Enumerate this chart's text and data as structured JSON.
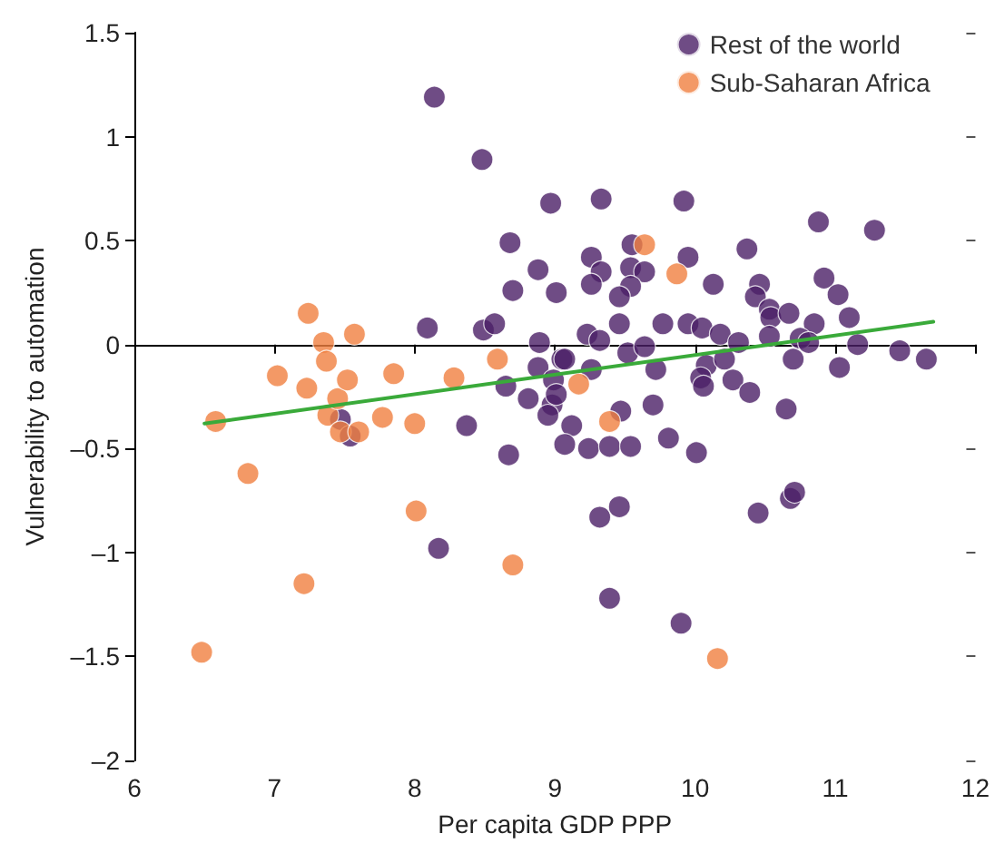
{
  "chart_data": {
    "type": "scatter",
    "xlabel": "Per capita GDP PPP",
    "ylabel": "Vulnerability to automation",
    "xlim": [
      6,
      12
    ],
    "xticks": [
      6,
      7,
      8,
      9,
      10,
      11,
      12
    ],
    "ylim": [
      -2,
      1.5
    ],
    "yticks": [
      {
        "value": -2,
        "label": "–2"
      },
      {
        "value": -1.5,
        "label": "–1.5"
      },
      {
        "value": -1,
        "label": "–1"
      },
      {
        "value": -0.5,
        "label": "–0.5"
      },
      0,
      0.5,
      1,
      1.5
    ],
    "grid": false,
    "legend": "top right",
    "marker": "circle",
    "ref_lines": [
      {
        "axis": "y",
        "value": 0,
        "color": "#000000"
      }
    ],
    "series": [
      {
        "name": "Rest of the world",
        "color": "#4b1f66",
        "x": [
          8.14,
          8.48,
          8.97,
          8.68,
          8.88,
          8.7,
          9.01,
          8.09,
          8.49,
          8.57,
          8.89,
          8.88,
          9.05,
          9.33,
          9.92,
          10.88,
          11.28,
          9.26,
          9.33,
          9.26,
          9.55,
          9.54,
          9.64,
          9.95,
          9.54,
          9.46,
          10.13,
          10.37,
          10.46,
          10.43,
          10.92,
          11.02,
          10.53,
          10.54,
          10.67,
          11.1,
          10.85,
          9.46,
          9.77,
          9.95,
          10.05,
          9.23,
          9.32,
          10.18,
          10.31,
          10.53,
          10.75,
          10.81,
          11.16,
          11.46,
          11.65,
          9.07,
          9.52,
          9.64,
          9.72,
          10.08,
          10.21,
          10.7,
          11.03,
          9.26,
          10.04,
          10.27,
          8.99,
          8.81,
          8.98,
          8.95,
          9.12,
          9.47,
          9.7,
          10.06,
          10.39,
          10.65,
          9.07,
          9.24,
          9.39,
          9.54,
          9.81,
          10.01,
          9.32,
          9.46,
          10.45,
          10.68,
          10.71,
          9.39,
          9.9,
          7.47,
          7.54,
          8.37,
          8.67,
          8.17,
          8.65,
          9.01
        ],
        "values": [
          1.19,
          0.89,
          0.68,
          0.49,
          0.36,
          0.26,
          0.25,
          0.08,
          0.07,
          0.1,
          0.01,
          -0.11,
          -0.07,
          0.7,
          0.69,
          0.59,
          0.55,
          0.42,
          0.35,
          0.29,
          0.48,
          0.37,
          0.35,
          0.42,
          0.28,
          0.23,
          0.29,
          0.46,
          0.29,
          0.23,
          0.32,
          0.24,
          0.17,
          0.13,
          0.15,
          0.13,
          0.1,
          0.1,
          0.1,
          0.1,
          0.08,
          0.05,
          0.02,
          0.05,
          0.01,
          0.04,
          0.03,
          0.01,
          0.0,
          -0.03,
          -0.07,
          -0.07,
          -0.04,
          -0.01,
          -0.12,
          -0.1,
          -0.07,
          -0.07,
          -0.11,
          -0.12,
          -0.16,
          -0.17,
          -0.17,
          -0.26,
          -0.29,
          -0.34,
          -0.39,
          -0.32,
          -0.29,
          -0.2,
          -0.23,
          -0.31,
          -0.48,
          -0.5,
          -0.49,
          -0.49,
          -0.45,
          -0.52,
          -0.83,
          -0.78,
          -0.81,
          -0.74,
          -0.71,
          -1.22,
          -1.34,
          -0.36,
          -0.44,
          -0.39,
          -0.53,
          -0.98,
          -0.2,
          -0.24
        ]
      },
      {
        "name": "Sub-Saharan Africa",
        "color": "#f08040",
        "x": [
          6.48,
          6.58,
          6.81,
          7.02,
          7.23,
          7.24,
          7.35,
          7.37,
          7.38,
          7.45,
          7.47,
          7.52,
          7.57,
          7.6,
          7.77,
          7.85,
          8.0,
          8.01,
          8.28,
          7.21,
          8.59,
          8.7,
          9.17,
          9.39,
          9.64,
          9.87,
          10.16
        ],
        "values": [
          -1.48,
          -0.37,
          -0.62,
          -0.15,
          -0.21,
          0.15,
          0.01,
          -0.08,
          -0.34,
          -0.26,
          -0.42,
          -0.17,
          0.05,
          -0.42,
          -0.35,
          -0.14,
          -0.38,
          -0.8,
          -0.16,
          -1.15,
          -0.07,
          -1.06,
          -0.19,
          -0.37,
          0.48,
          0.34,
          -1.51
        ]
      },
      {
        "type": "line",
        "color": "#3aaa3a",
        "marker": "none",
        "x": [
          6.5,
          11.7
        ],
        "values": [
          -0.38,
          0.11
        ]
      }
    ]
  }
}
